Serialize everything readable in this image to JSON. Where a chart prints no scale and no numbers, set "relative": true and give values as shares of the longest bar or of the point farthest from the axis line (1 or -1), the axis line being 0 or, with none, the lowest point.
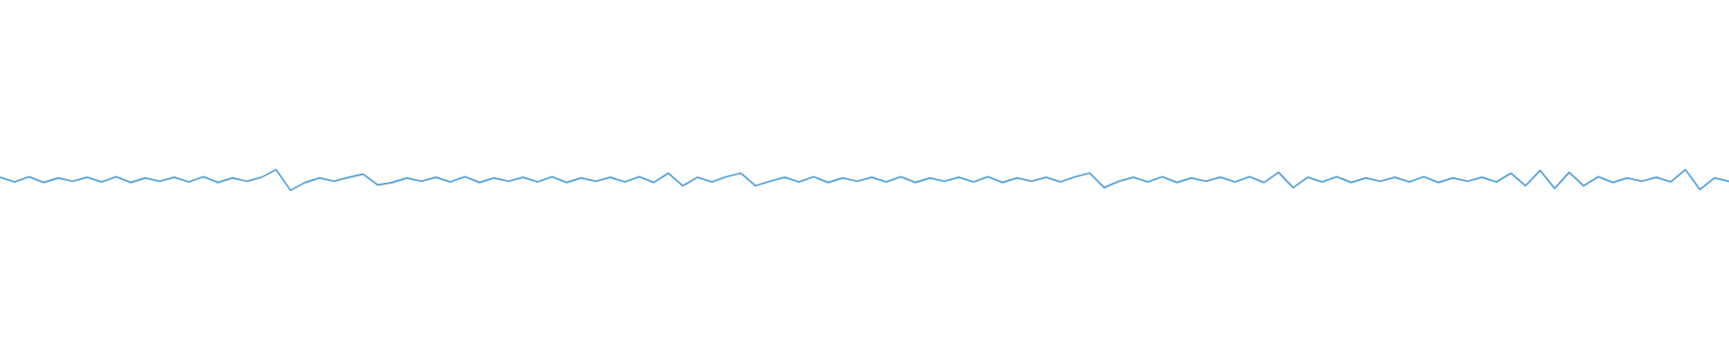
{
  "chart_data": {
    "type": "line",
    "relative": true,
    "categories": [
      null,
      null,
      null,
      null,
      null,
      null,
      null,
      null,
      null,
      null,
      null,
      null,
      null,
      null,
      null,
      null,
      null,
      null,
      null,
      null,
      null,
      null,
      null,
      null,
      null,
      null,
      null,
      null,
      null,
      null,
      null,
      null,
      null,
      null,
      null,
      null,
      null,
      null,
      null,
      null,
      null,
      null,
      null,
      null,
      null,
      null,
      null,
      null,
      null,
      null,
      null,
      null,
      null,
      null,
      null,
      null,
      null,
      null,
      null,
      null,
      null,
      null,
      null,
      null,
      null,
      null,
      null,
      null,
      null,
      null,
      null,
      null,
      null,
      null,
      null,
      null,
      null,
      null,
      null,
      null,
      null,
      null,
      null,
      null,
      null,
      null,
      null,
      null,
      null,
      null,
      null,
      null,
      null,
      null,
      null,
      null,
      null,
      null,
      null,
      null,
      null,
      null,
      null,
      null,
      null,
      null,
      null,
      null,
      null,
      null,
      null,
      null,
      null,
      null,
      null,
      null,
      null,
      null,
      null,
      null
    ],
    "series": [
      {
        "color": "#5aa5dc",
        "values": [
          0.63,
          0.41,
          0.66,
          0.38,
          0.6,
          0.44,
          0.63,
          0.41,
          0.66,
          0.38,
          0.6,
          0.44,
          0.63,
          0.41,
          0.66,
          0.38,
          0.6,
          0.44,
          0.63,
          1.0,
          0,
          0.38,
          0.6,
          0.44,
          0.63,
          0.78,
          0.26,
          0.38,
          0.6,
          0.44,
          0.63,
          0.41,
          0.66,
          0.38,
          0.6,
          0.44,
          0.63,
          0.41,
          0.66,
          0.38,
          0.6,
          0.44,
          0.63,
          0.41,
          0.66,
          0.38,
          0.83,
          0.22,
          0.63,
          0.41,
          0.66,
          0.83,
          0.22,
          0.44,
          0.63,
          0.41,
          0.66,
          0.38,
          0.6,
          0.44,
          0.63,
          0.41,
          0.66,
          0.38,
          0.6,
          0.44,
          0.63,
          0.41,
          0.66,
          0.38,
          0.6,
          0.44,
          0.63,
          0.41,
          0.66,
          0.83,
          0.13,
          0.44,
          0.63,
          0.41,
          0.66,
          0.38,
          0.6,
          0.44,
          0.63,
          0.41,
          0.66,
          0.38,
          0.87,
          0.13,
          0.63,
          0.41,
          0.66,
          0.38,
          0.6,
          0.44,
          0.63,
          0.41,
          0.66,
          0.38,
          0.6,
          0.44,
          0.63,
          0.41,
          0.83,
          0.22,
          0.96,
          0.09,
          0.87,
          0.22,
          0.66,
          0.38,
          0.6,
          0.44,
          0.63,
          0.41,
          1.0,
          0.04,
          0.6,
          0.44
        ]
      }
    ]
  }
}
